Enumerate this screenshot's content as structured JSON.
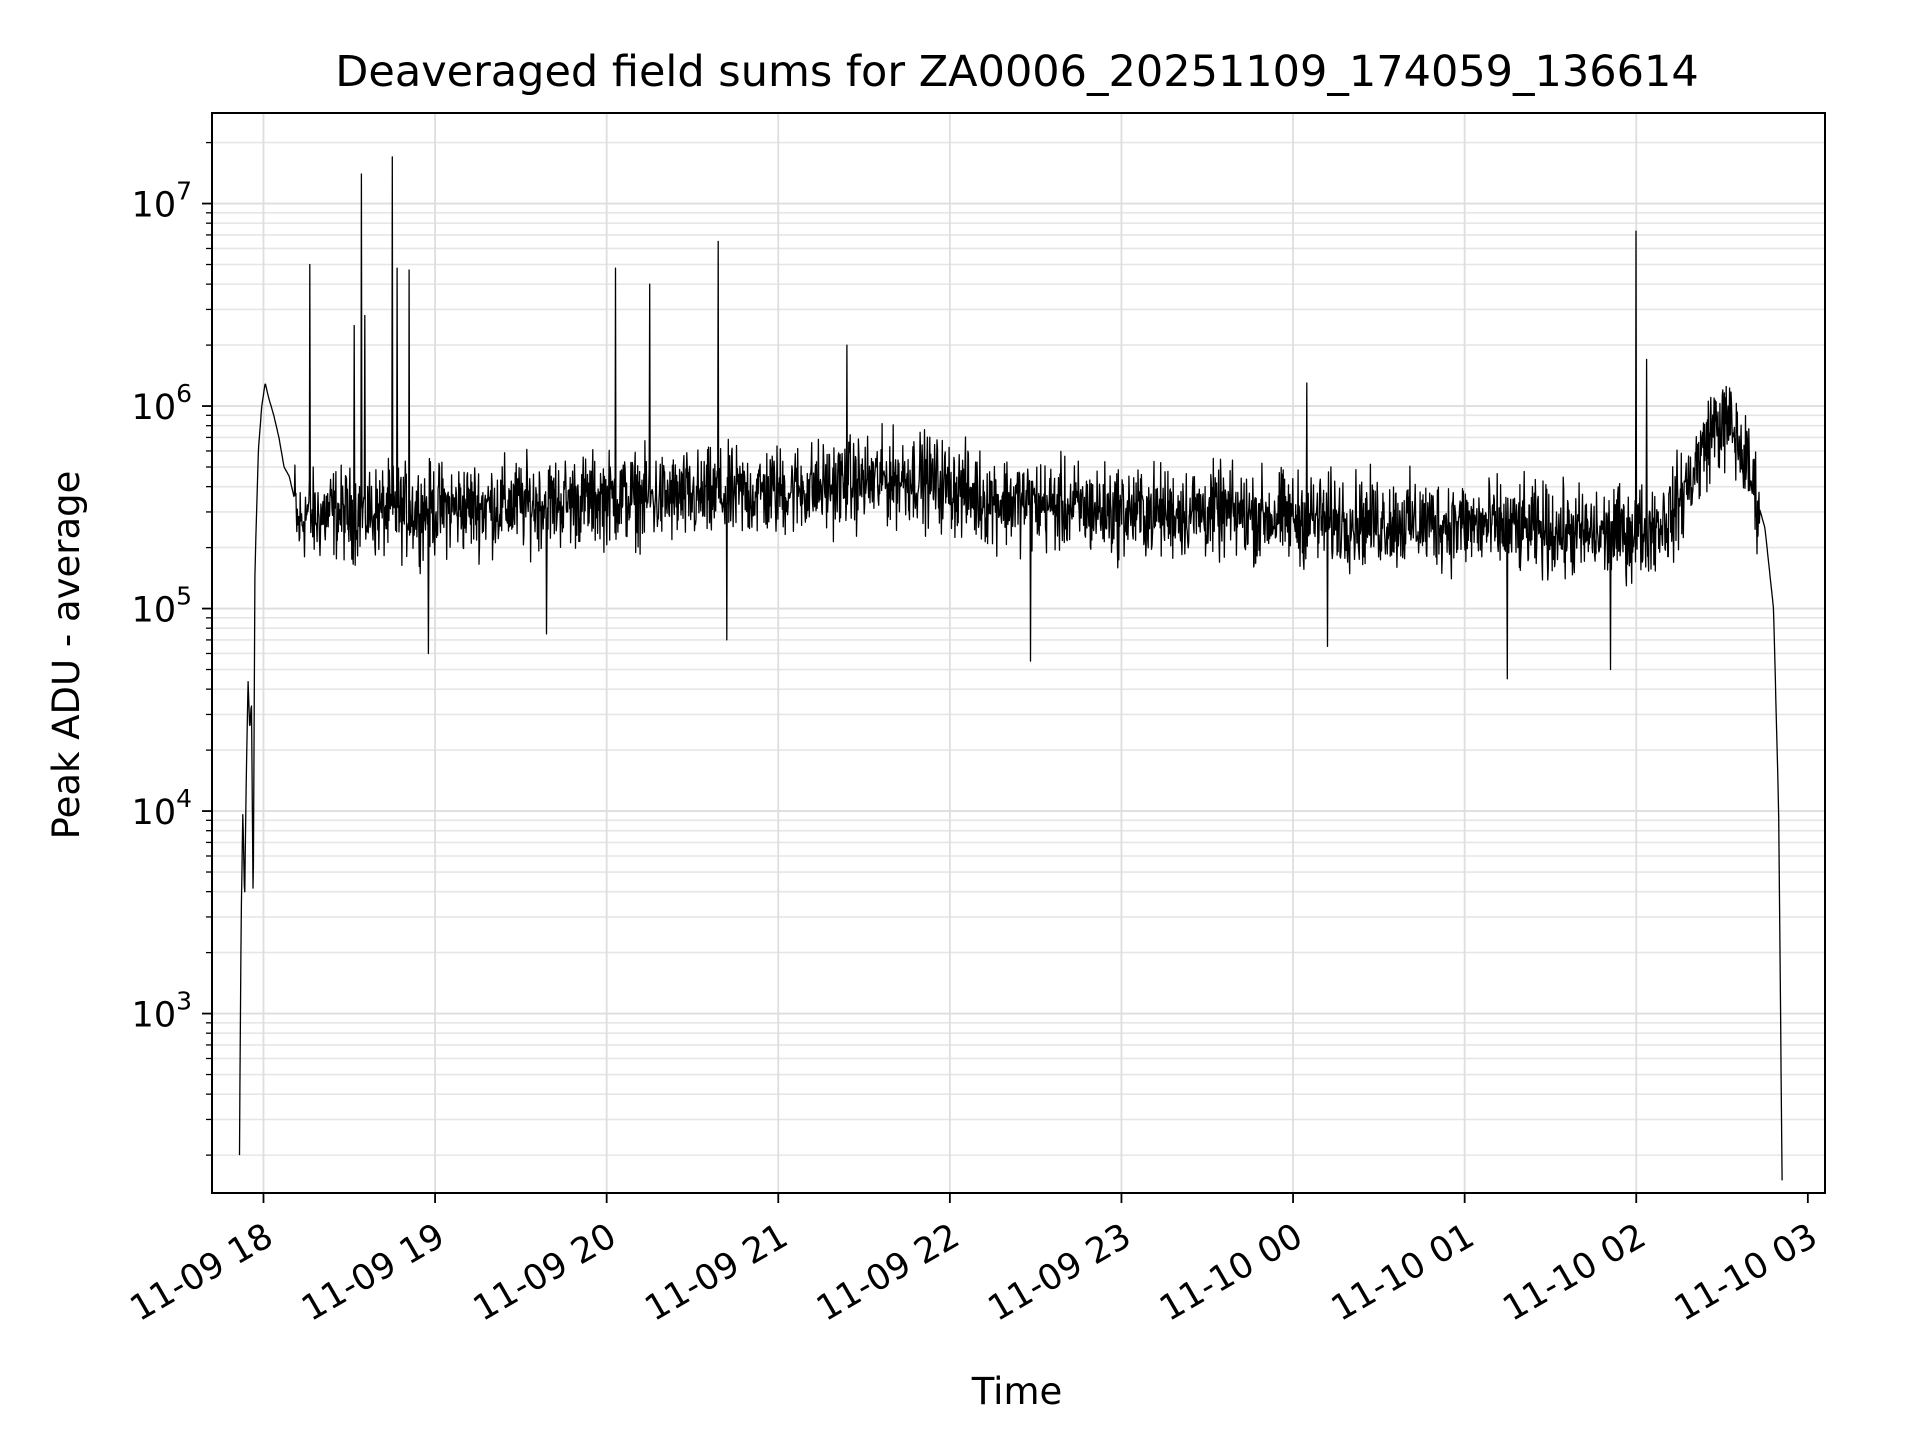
{
  "chart_data": {
    "type": "line",
    "title": "Deaveraged field sums for ZA0006_20251109_174059_136614",
    "xlabel": "Time",
    "ylabel": "Peak ADU - average",
    "yscale": "log",
    "grid": "on (major and minor)",
    "line_color": "#000000",
    "x_unit": "hours since 11-09 18:00",
    "xlim": [
      -0.3,
      9.1
    ],
    "ylim": [
      130,
      28000000
    ],
    "x_ticks": [
      {
        "value": 0,
        "label": "11-09 18"
      },
      {
        "value": 1,
        "label": "11-09 19"
      },
      {
        "value": 2,
        "label": "11-09 20"
      },
      {
        "value": 3,
        "label": "11-09 21"
      },
      {
        "value": 4,
        "label": "11-09 22"
      },
      {
        "value": 5,
        "label": "11-09 23"
      },
      {
        "value": 6,
        "label": "11-10 00"
      },
      {
        "value": 7,
        "label": "11-10 01"
      },
      {
        "value": 8,
        "label": "11-10 02"
      },
      {
        "value": 9,
        "label": "11-10 03"
      }
    ],
    "y_ticks": [
      {
        "value": 1000,
        "base": "10",
        "exp": "3"
      },
      {
        "value": 10000,
        "base": "10",
        "exp": "4"
      },
      {
        "value": 100000,
        "base": "10",
        "exp": "5"
      },
      {
        "value": 1000000,
        "base": "10",
        "exp": "6"
      },
      {
        "value": 10000000,
        "base": "10",
        "exp": "7"
      }
    ],
    "series": [
      {
        "name": "deaveraged field sum",
        "points": [
          [
            -0.14,
            200
          ],
          [
            -0.13,
            3000
          ],
          [
            -0.12,
            10000
          ],
          [
            -0.11,
            3500
          ],
          [
            -0.1,
            15000
          ],
          [
            -0.09,
            45000
          ],
          [
            -0.08,
            25000
          ],
          [
            -0.07,
            35000
          ],
          [
            -0.06,
            3000
          ],
          [
            -0.05,
            150000
          ],
          [
            -0.03,
            600000
          ],
          [
            -0.01,
            1000000
          ],
          [
            0.01,
            1300000
          ],
          [
            0.03,
            1100000
          ],
          [
            0.06,
            900000
          ],
          [
            0.09,
            700000
          ],
          [
            0.12,
            500000
          ],
          [
            0.15,
            450000
          ],
          [
            0.18,
            350000
          ],
          [
            0.2,
            250000
          ],
          [
            0.25,
            300000
          ],
          [
            0.3,
            280000
          ],
          [
            0.4,
            300000
          ],
          [
            0.5,
            290000
          ],
          [
            0.6,
            300000
          ],
          [
            0.8,
            300000
          ],
          [
            1.0,
            310000
          ],
          [
            1.3,
            320000
          ],
          [
            1.6,
            330000
          ],
          [
            2.0,
            350000
          ],
          [
            2.5,
            350000
          ],
          [
            3.0,
            380000
          ],
          [
            3.5,
            420000
          ],
          [
            3.8,
            450000
          ],
          [
            4.2,
            350000
          ],
          [
            4.6,
            320000
          ],
          [
            5.0,
            300000
          ],
          [
            5.5,
            300000
          ],
          [
            6.0,
            280000
          ],
          [
            6.5,
            270000
          ],
          [
            7.0,
            260000
          ],
          [
            7.5,
            240000
          ],
          [
            7.8,
            230000
          ],
          [
            8.0,
            240000
          ],
          [
            8.2,
            280000
          ],
          [
            8.35,
            500000
          ],
          [
            8.45,
            800000
          ],
          [
            8.55,
            800000
          ],
          [
            8.65,
            500000
          ],
          [
            8.75,
            250000
          ],
          [
            8.8,
            100000
          ],
          [
            8.83,
            10000
          ],
          [
            8.85,
            150
          ]
        ],
        "spikes": [
          [
            0.27,
            5000000
          ],
          [
            0.53,
            2500000
          ],
          [
            0.57,
            14000000
          ],
          [
            0.59,
            2800000
          ],
          [
            0.75,
            17000000
          ],
          [
            0.78,
            4800000
          ],
          [
            0.85,
            4700000
          ],
          [
            2.05,
            4800000
          ],
          [
            2.25,
            4000000
          ],
          [
            2.65,
            6500000
          ],
          [
            3.4,
            2000000
          ],
          [
            6.08,
            1300000
          ],
          [
            8.0,
            7300000
          ],
          [
            8.06,
            1700000
          ]
        ],
        "dips": [
          [
            0.96,
            60000
          ],
          [
            1.65,
            75000
          ],
          [
            2.7,
            70000
          ],
          [
            4.47,
            55000
          ],
          [
            6.2,
            65000
          ],
          [
            7.25,
            45000
          ],
          [
            7.85,
            50000
          ]
        ]
      }
    ]
  }
}
